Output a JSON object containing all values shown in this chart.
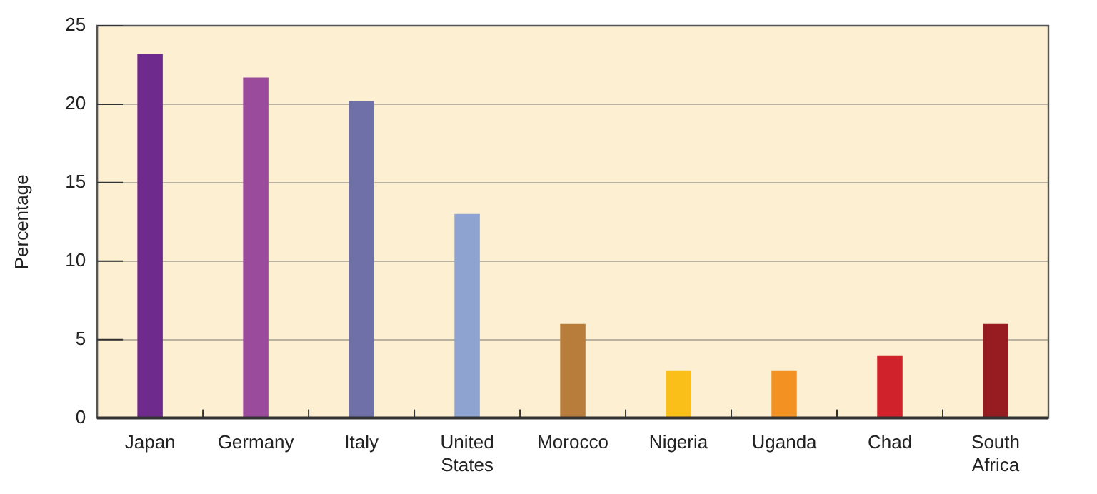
{
  "chart_data": {
    "type": "bar",
    "ylabel": "Percentage",
    "categories": [
      "Japan",
      "Germany",
      "Italy",
      "United States",
      "Morocco",
      "Nigeria",
      "Uganda",
      "Chad",
      "South Africa"
    ],
    "values": [
      23.2,
      21.7,
      20.2,
      13,
      6,
      3,
      3,
      4,
      6
    ],
    "colors": [
      "#6e2a8c",
      "#9a4b9c",
      "#6f70a8",
      "#8ea3cf",
      "#b87d3b",
      "#fbbf1a",
      "#f39223",
      "#d0222b",
      "#961c21"
    ],
    "ylim": [
      0,
      25
    ],
    "yticks": [
      0,
      5,
      10,
      15,
      20,
      25
    ],
    "grid": "y",
    "legend": false
  }
}
